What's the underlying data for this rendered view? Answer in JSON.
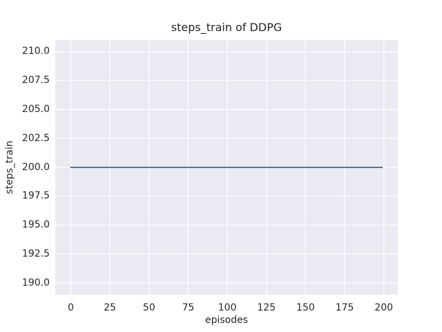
{
  "chart_data": {
    "type": "line",
    "title": "steps_train of DDPG",
    "xlabel": "episodes",
    "ylabel": "steps_train",
    "xlim": [
      -9.95,
      208.95
    ],
    "ylim": [
      189,
      211
    ],
    "x_tick_values": [
      0,
      25,
      50,
      75,
      100,
      125,
      150,
      175,
      200
    ],
    "x_tick_labels": [
      "0",
      "25",
      "50",
      "75",
      "100",
      "125",
      "150",
      "175",
      "200"
    ],
    "y_tick_values": [
      190,
      192.5,
      195,
      197.5,
      200,
      202.5,
      205,
      207.5,
      210
    ],
    "y_tick_labels": [
      "190.0",
      "192.5",
      "195.0",
      "197.5",
      "200.0",
      "202.5",
      "205.0",
      "207.5",
      "210.0"
    ],
    "grid": true,
    "legend": "none",
    "series": [
      {
        "name": "steps_train",
        "x": [
          0,
          199
        ],
        "y": [
          200,
          200
        ],
        "color": "#4C72B0",
        "line_width": 2
      }
    ],
    "colors": {
      "figure_background": "#FFFFFF",
      "plot_background": "#EAEAF2",
      "grid": "#FFFFFF",
      "text": "#262626",
      "line": "#4C72B0"
    }
  }
}
